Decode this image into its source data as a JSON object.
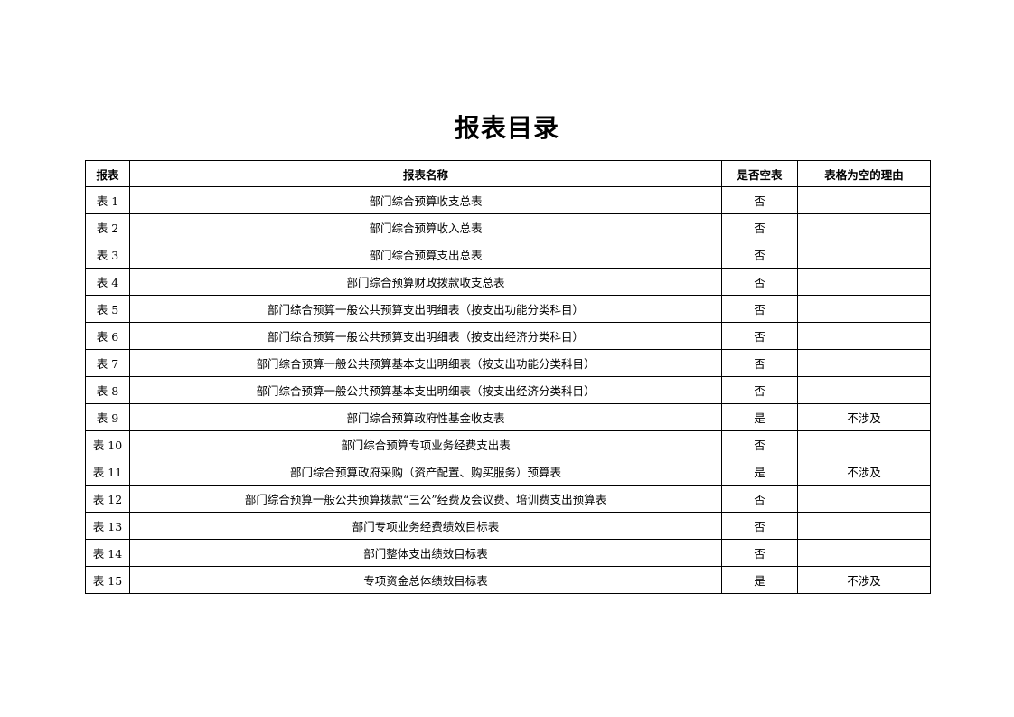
{
  "title": "报表目录",
  "headers": [
    "报表",
    "报表名称",
    "是否空表",
    "表格为空的理由"
  ],
  "rows": [
    {
      "id": "表 1",
      "name": "部门综合预算收支总表",
      "empty": "否",
      "reason": ""
    },
    {
      "id": "表 2",
      "name": "部门综合预算收入总表",
      "empty": "否",
      "reason": ""
    },
    {
      "id": "表 3",
      "name": "部门综合预算支出总表",
      "empty": "否",
      "reason": ""
    },
    {
      "id": "表 4",
      "name": "部门综合预算财政拨款收支总表",
      "empty": "否",
      "reason": ""
    },
    {
      "id": "表 5",
      "name": "部门综合预算一般公共预算支出明细表（按支出功能分类科目）",
      "empty": "否",
      "reason": ""
    },
    {
      "id": "表 6",
      "name": "部门综合预算一般公共预算支出明细表（按支出经济分类科目）",
      "empty": "否",
      "reason": ""
    },
    {
      "id": "表 7",
      "name": "部门综合预算一般公共预算基本支出明细表（按支出功能分类科目）",
      "empty": "否",
      "reason": ""
    },
    {
      "id": "表 8",
      "name": "部门综合预算一般公共预算基本支出明细表（按支出经济分类科目）",
      "empty": "否",
      "reason": ""
    },
    {
      "id": "表 9",
      "name": "部门综合预算政府性基金收支表",
      "empty": "是",
      "reason": "不涉及"
    },
    {
      "id": "表 10",
      "name": "部门综合预算专项业务经费支出表",
      "empty": "否",
      "reason": ""
    },
    {
      "id": "表 11",
      "name": "部门综合预算政府采购（资产配置、购买服务）预算表",
      "empty": "是",
      "reason": "不涉及"
    },
    {
      "id": "表 12",
      "name": "部门综合预算一般公共预算拨款“三公”经费及会议费、培训费支出预算表",
      "empty": "否",
      "reason": ""
    },
    {
      "id": "表 13",
      "name": "部门专项业务经费绩效目标表",
      "empty": "否",
      "reason": ""
    },
    {
      "id": "表 14",
      "name": "部门整体支出绩效目标表",
      "empty": "否",
      "reason": ""
    },
    {
      "id": "表 15",
      "name": "专项资金总体绩效目标表",
      "empty": "是",
      "reason": "不涉及"
    }
  ]
}
